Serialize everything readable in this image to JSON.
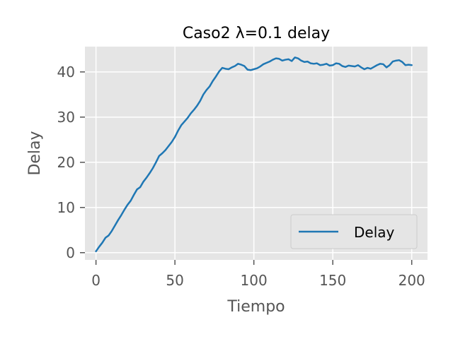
{
  "chart_data": {
    "type": "line",
    "title": "Caso2 λ=0.1 delay",
    "xlabel": "Tiempo",
    "ylabel": "Delay",
    "xlim": [
      -7,
      210
    ],
    "ylim": [
      -1.6,
      45.6
    ],
    "xticks": [
      0,
      50,
      100,
      150,
      200
    ],
    "yticks": [
      0,
      10,
      20,
      30,
      40
    ],
    "grid": true,
    "legend_position": "lower-right",
    "background_color": "#e5e5e5",
    "series": [
      {
        "name": "Delay",
        "color": "#1f77b4",
        "x": [
          0,
          2,
          4,
          6,
          8,
          10,
          12,
          14,
          16,
          18,
          20,
          22,
          24,
          26,
          28,
          30,
          32,
          34,
          36,
          38,
          40,
          42,
          44,
          46,
          48,
          50,
          52,
          54,
          56,
          58,
          60,
          62,
          64,
          66,
          68,
          70,
          72,
          74,
          76,
          78,
          80,
          82,
          84,
          86,
          88,
          90,
          92,
          94,
          96,
          98,
          100,
          102,
          104,
          106,
          108,
          110,
          112,
          114,
          116,
          118,
          120,
          122,
          124,
          126,
          128,
          130,
          132,
          134,
          136,
          138,
          140,
          142,
          144,
          146,
          148,
          150,
          152,
          154,
          156,
          158,
          160,
          162,
          164,
          166,
          168,
          170,
          172,
          174,
          176,
          178,
          180,
          182,
          184,
          186,
          188,
          190,
          192,
          194,
          196,
          198,
          200
        ],
        "y": [
          0.3,
          1.3,
          2.2,
          3.3,
          3.8,
          4.8,
          6.0,
          7.2,
          8.3,
          9.5,
          10.6,
          11.5,
          12.8,
          14.0,
          14.5,
          15.7,
          16.6,
          17.6,
          18.7,
          20.0,
          21.4,
          22.0,
          22.7,
          23.6,
          24.5,
          25.6,
          27.0,
          28.2,
          29.0,
          29.8,
          30.8,
          31.6,
          32.5,
          33.6,
          35.0,
          36.0,
          36.8,
          38.0,
          39.0,
          40.1,
          40.9,
          40.7,
          40.6,
          41.0,
          41.3,
          41.8,
          41.6,
          41.3,
          40.5,
          40.4,
          40.6,
          40.8,
          41.2,
          41.7,
          42.0,
          42.3,
          42.7,
          43.0,
          42.9,
          42.5,
          42.7,
          42.8,
          42.4,
          43.2,
          43.0,
          42.5,
          42.2,
          42.3,
          41.9,
          41.8,
          41.9,
          41.5,
          41.6,
          41.8,
          41.4,
          41.5,
          41.9,
          41.8,
          41.3,
          41.1,
          41.4,
          41.3,
          41.2,
          41.5,
          41.0,
          40.6,
          40.9,
          40.7,
          41.1,
          41.5,
          41.8,
          41.7,
          41.0,
          41.5,
          42.3,
          42.5,
          42.6,
          42.2,
          41.5,
          41.6,
          41.5
        ]
      }
    ]
  }
}
